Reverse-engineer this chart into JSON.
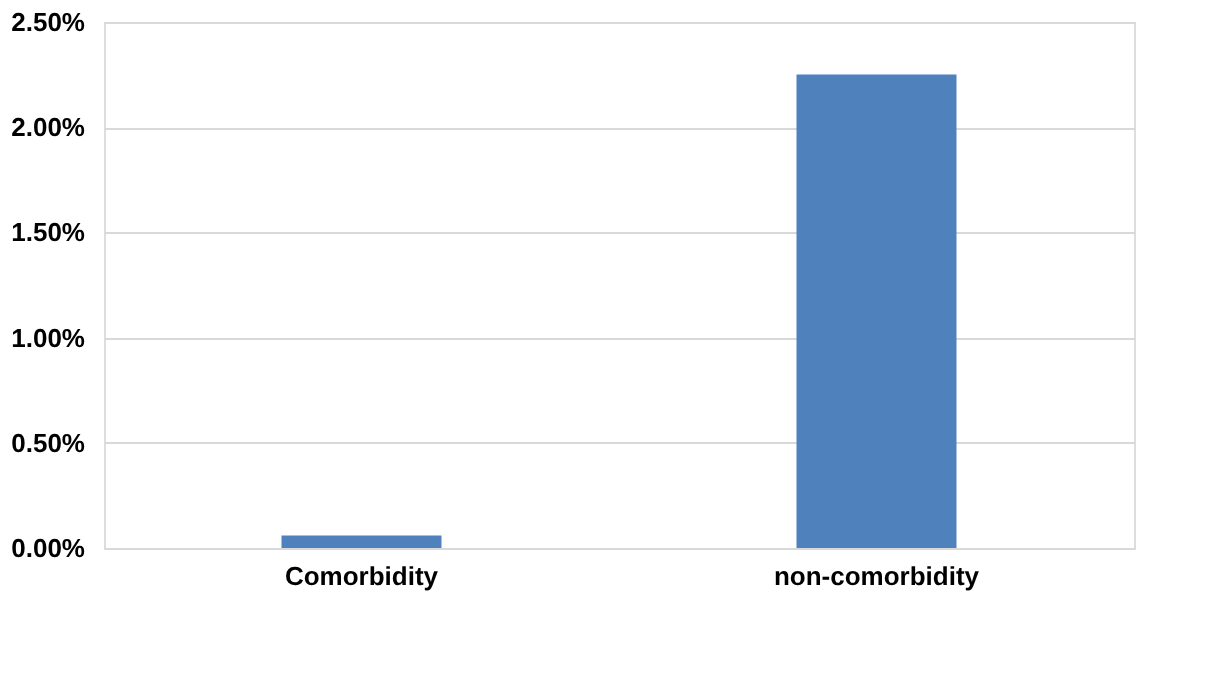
{
  "chart_data": {
    "type": "bar",
    "categories": [
      "Comorbidity",
      "non-comorbidity"
    ],
    "values": [
      0.06,
      2.25
    ],
    "color": "#4f81bd",
    "ylim": [
      0,
      2.5
    ],
    "yticks": [
      {
        "value": 0,
        "label": "0.00%"
      },
      {
        "value": 0.5,
        "label": "0.50%"
      },
      {
        "value": 1,
        "label": "1.00%"
      },
      {
        "value": 1.5,
        "label": "1.50%"
      },
      {
        "value": 2,
        "label": "2.00%"
      },
      {
        "value": 2.5,
        "label": "2.50%"
      }
    ],
    "grid": "y"
  }
}
